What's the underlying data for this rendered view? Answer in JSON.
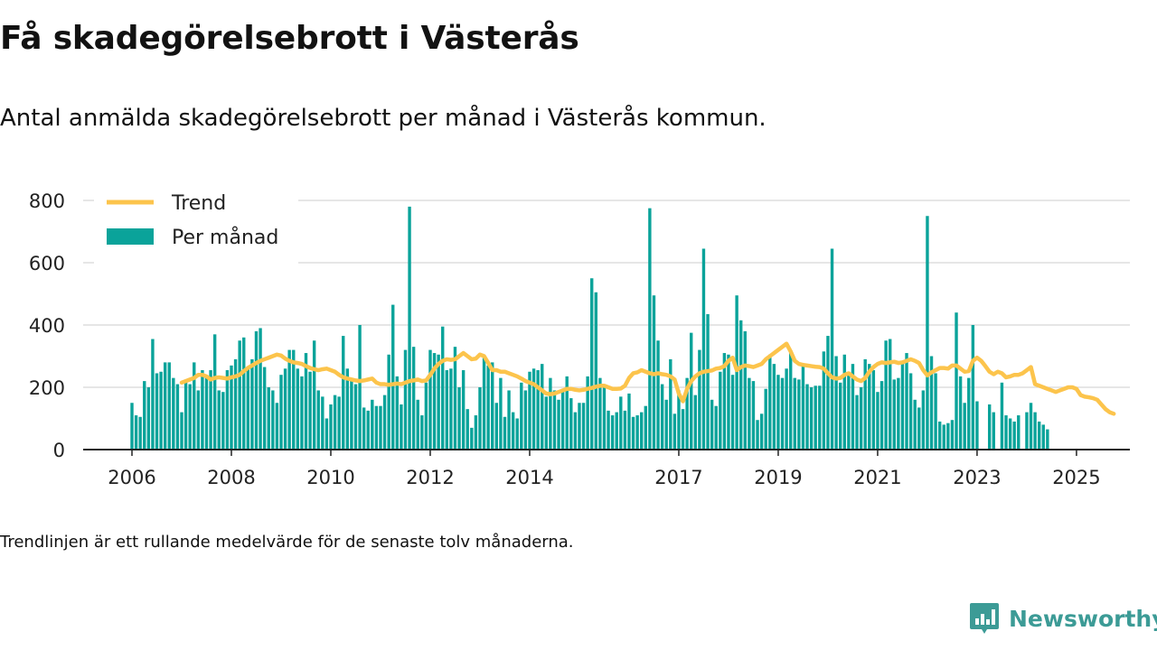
{
  "header": {
    "title": "Få skadegörelsebrott i Västerås",
    "subtitle": "Antal anmälda skadegörelsebrott per månad i Västerås kommun."
  },
  "footer": {
    "note": "Trendlinjen är ett rullande medelvärde för de senaste tolv månaderna.",
    "brand": "Newsworthy"
  },
  "colors": {
    "bars": "#0aa39a",
    "trend": "#fcc44c",
    "grid": "#d8d8d8",
    "axis": "#222222",
    "brand": "#3c9b96"
  },
  "icons": [
    "newsworthy-logo-icon"
  ],
  "chart_data": {
    "type": "bar",
    "x_unit": "month",
    "start": "2006-01",
    "ylim": [
      0,
      800
    ],
    "yticks": [
      0,
      200,
      400,
      600,
      800
    ],
    "xticks": [
      "2006",
      "2008",
      "2010",
      "2012",
      "2014",
      "2017",
      "2019",
      "2021",
      "2023",
      "2025"
    ],
    "grid": true,
    "legend_position": "top-left",
    "series": [
      {
        "name": "Per månad",
        "type": "bar",
        "values": [
          150,
          110,
          105,
          220,
          200,
          355,
          245,
          250,
          280,
          280,
          230,
          210,
          120,
          220,
          210,
          280,
          190,
          255,
          235,
          255,
          370,
          190,
          185,
          255,
          270,
          290,
          350,
          360,
          260,
          290,
          380,
          390,
          265,
          200,
          190,
          150,
          240,
          260,
          320,
          320,
          260,
          235,
          310,
          250,
          350,
          190,
          170,
          100,
          145,
          175,
          170,
          365,
          260,
          225,
          210,
          400,
          135,
          125,
          160,
          140,
          140,
          175,
          305,
          465,
          235,
          145,
          320,
          780,
          330,
          160,
          110,
          215,
          320,
          310,
          305,
          395,
          255,
          260,
          330,
          200,
          255,
          130,
          70,
          110,
          200,
          295,
          270,
          280,
          150,
          230,
          105,
          190,
          120,
          100,
          215,
          190,
          250,
          260,
          255,
          275,
          170,
          230,
          190,
          160,
          195,
          235,
          165,
          120,
          150,
          150,
          235,
          550,
          505,
          230,
          210,
          125,
          110,
          120,
          170,
          125,
          180,
          105,
          110,
          120,
          140,
          775,
          495,
          350,
          210,
          160,
          290,
          115,
          190,
          130,
          230,
          375,
          175,
          320,
          645,
          435,
          160,
          140,
          250,
          310,
          305,
          240,
          495,
          415,
          380,
          230,
          220,
          95,
          115,
          195,
          305,
          275,
          240,
          230,
          260,
          315,
          230,
          225,
          270,
          210,
          200,
          205,
          205,
          315,
          365,
          645,
          300,
          215,
          305,
          240,
          275,
          175,
          200,
          290,
          275,
          255,
          185,
          220,
          350,
          355,
          225,
          230,
          285,
          310,
          245,
          160,
          135,
          190,
          750,
          300,
          245,
          90,
          80,
          85,
          95,
          440,
          235,
          150,
          230,
          400,
          155,
          0,
          0,
          145,
          120,
          0,
          215,
          110,
          100,
          90,
          110,
          0,
          120,
          150,
          120,
          90,
          80,
          65
        ]
      },
      {
        "name": "Trend",
        "type": "line",
        "start": "2007-01",
        "values": [
          215,
          220,
          225,
          230,
          240,
          240,
          235,
          225,
          230,
          232,
          230,
          228,
          232,
          235,
          240,
          252,
          262,
          270,
          278,
          285,
          290,
          295,
          300,
          305,
          302,
          292,
          285,
          280,
          278,
          275,
          268,
          262,
          258,
          255,
          258,
          260,
          255,
          250,
          240,
          232,
          228,
          225,
          222,
          220,
          222,
          225,
          228,
          215,
          210,
          210,
          208,
          210,
          212,
          210,
          215,
          220,
          222,
          225,
          220,
          222,
          240,
          260,
          275,
          285,
          290,
          288,
          290,
          300,
          310,
          300,
          290,
          292,
          305,
          300,
          278,
          255,
          255,
          250,
          250,
          245,
          240,
          235,
          228,
          220,
          215,
          210,
          200,
          190,
          180,
          178,
          180,
          185,
          190,
          195,
          195,
          192,
          190,
          192,
          195,
          198,
          202,
          205,
          205,
          200,
          195,
          195,
          196,
          205,
          230,
          245,
          248,
          255,
          250,
          245,
          242,
          245,
          242,
          240,
          235,
          225,
          180,
          155,
          195,
          220,
          235,
          245,
          250,
          252,
          254,
          260,
          262,
          268,
          285,
          295,
          255,
          265,
          270,
          268,
          265,
          270,
          275,
          290,
          300,
          310,
          320,
          330,
          340,
          315,
          285,
          275,
          272,
          270,
          268,
          266,
          265,
          260,
          245,
          232,
          228,
          230,
          240,
          245,
          235,
          225,
          220,
          230,
          250,
          265,
          275,
          280,
          278,
          280,
          282,
          278,
          280,
          285,
          290,
          285,
          278,
          255,
          238,
          248,
          255,
          262,
          262,
          260,
          270,
          270,
          260,
          250,
          252,
          285,
          295,
          285,
          268,
          250,
          242,
          250,
          245,
          232,
          235,
          240,
          240,
          245,
          255,
          265,
          210,
          205,
          200,
          195,
          190,
          185,
          190,
          195,
          200,
          200,
          195,
          175,
          170,
          168,
          165,
          160,
          145,
          130,
          120,
          115
        ]
      }
    ]
  }
}
